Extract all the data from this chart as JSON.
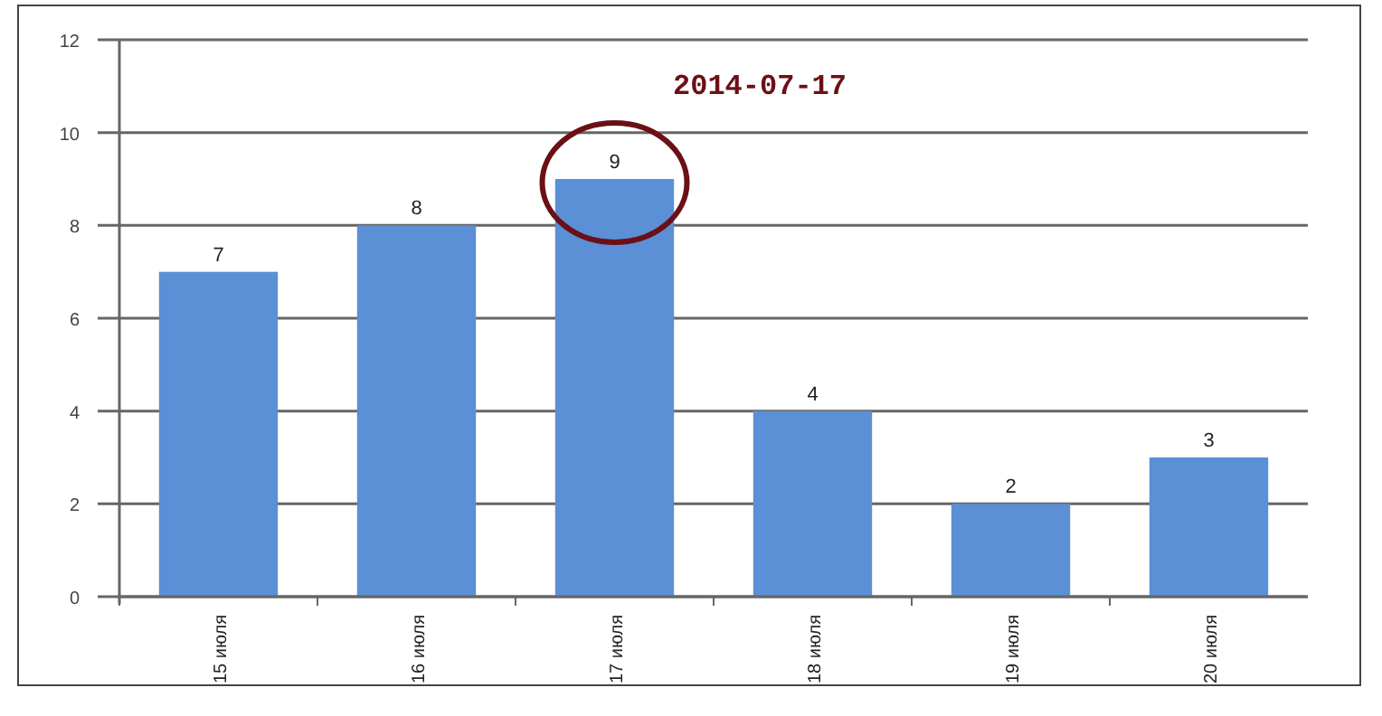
{
  "chart_data": {
    "type": "bar",
    "categories": [
      "15 июля",
      "16 июля",
      "17 июля",
      "18 июля",
      "19 июля",
      "20 июля"
    ],
    "values": [
      7,
      8,
      9,
      4,
      2,
      3
    ],
    "color": "#5b8fd6",
    "ylim": [
      0,
      12
    ],
    "yticks": [
      0,
      2,
      4,
      6,
      8,
      10,
      12
    ],
    "grid": "y",
    "data_labels": true,
    "annotations": [
      "2014-07-17"
    ]
  }
}
